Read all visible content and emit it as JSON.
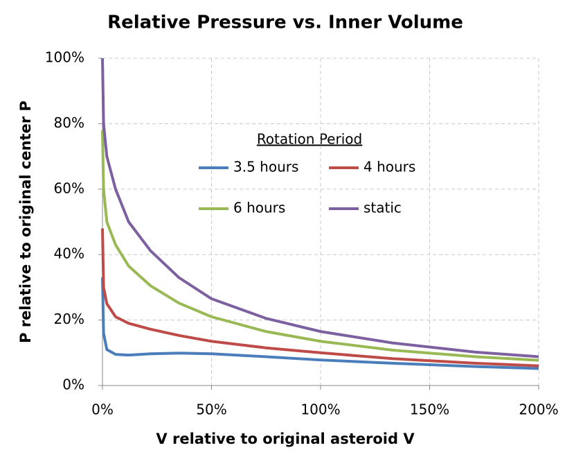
{
  "chart_data": {
    "type": "line",
    "title": "Relative Pressure vs. Inner Volume",
    "x_label": "V relative to original asteroid V",
    "y_label": "P relative to original center P",
    "legend_title": "Rotation Period",
    "x": [
      0,
      0.5,
      2,
      6,
      12,
      22,
      35,
      50,
      75,
      100,
      133,
      171,
      200
    ],
    "series": [
      {
        "name": "3.5 hours",
        "color": "#4a7ebb",
        "values": [
          33,
          16,
          11,
          9.5,
          9.3,
          9.7,
          9.9,
          9.7,
          8.8,
          7.8,
          6.8,
          5.8,
          5.2
        ]
      },
      {
        "name": "4 hours",
        "color": "#be4b48",
        "values": [
          48,
          30,
          25,
          21,
          19,
          17.2,
          15.3,
          13.5,
          11.5,
          10,
          8.2,
          6.8,
          6
        ]
      },
      {
        "name": "6 hours",
        "color": "#98b954",
        "values": [
          78,
          60,
          50,
          43,
          36.5,
          30.5,
          25.2,
          21,
          16.5,
          13.5,
          10.8,
          8.8,
          7.7
        ]
      },
      {
        "name": "static",
        "color": "#7d60a0",
        "values": [
          100,
          80,
          70,
          60,
          50,
          41.2,
          33,
          26.5,
          20.5,
          16.5,
          13,
          10.2,
          8.8
        ]
      }
    ],
    "xlim": [
      0,
      200
    ],
    "ylim": [
      0,
      100
    ],
    "xticks": [
      {
        "value": 0,
        "label": "0%"
      },
      {
        "value": 50,
        "label": "50%"
      },
      {
        "value": 100,
        "label": "100%"
      },
      {
        "value": 150,
        "label": "150%"
      },
      {
        "value": 200,
        "label": "200%"
      }
    ],
    "yticks": [
      {
        "value": 0,
        "label": "0%"
      },
      {
        "value": 20,
        "label": "20%"
      },
      {
        "value": 40,
        "label": "40%"
      },
      {
        "value": 60,
        "label": "60%"
      },
      {
        "value": 80,
        "label": "80%"
      },
      {
        "value": 100,
        "label": "100%"
      }
    ],
    "grid": true
  }
}
